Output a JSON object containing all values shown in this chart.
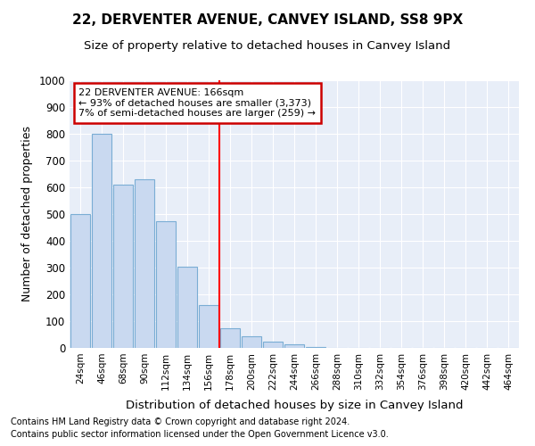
{
  "title1": "22, DERVENTER AVENUE, CANVEY ISLAND, SS8 9PX",
  "title2": "Size of property relative to detached houses in Canvey Island",
  "xlabel": "Distribution of detached houses by size in Canvey Island",
  "ylabel": "Number of detached properties",
  "footnote1": "Contains HM Land Registry data © Crown copyright and database right 2024.",
  "footnote2": "Contains public sector information licensed under the Open Government Licence v3.0.",
  "bar_labels": [
    "24sqm",
    "46sqm",
    "68sqm",
    "90sqm",
    "112sqm",
    "134sqm",
    "156sqm",
    "178sqm",
    "200sqm",
    "222sqm",
    "244sqm",
    "266sqm",
    "288sqm",
    "310sqm",
    "332sqm",
    "354sqm",
    "376sqm",
    "398sqm",
    "420sqm",
    "442sqm",
    "464sqm"
  ],
  "bar_values": [
    500,
    800,
    610,
    630,
    475,
    305,
    160,
    75,
    45,
    25,
    15,
    5,
    0,
    0,
    0,
    0,
    0,
    0,
    0,
    0,
    0
  ],
  "bar_color": "#c9d9f0",
  "bar_edge_color": "#7aadd4",
  "red_line_index": 7,
  "annotation_title": "22 DERVENTER AVENUE: 166sqm",
  "annotation_line1": "← 93% of detached houses are smaller (3,373)",
  "annotation_line2": "7% of semi-detached houses are larger (259) →",
  "annotation_box_color": "#ffffff",
  "annotation_box_edge": "#cc0000",
  "ylim": [
    0,
    1000
  ],
  "yticks": [
    0,
    100,
    200,
    300,
    400,
    500,
    600,
    700,
    800,
    900,
    1000
  ],
  "background_color": "#e8eef8",
  "grid_color": "#ffffff",
  "title1_fontsize": 11,
  "title2_fontsize": 9.5,
  "xlabel_fontsize": 9.5,
  "ylabel_fontsize": 9,
  "footnote_fontsize": 7
}
